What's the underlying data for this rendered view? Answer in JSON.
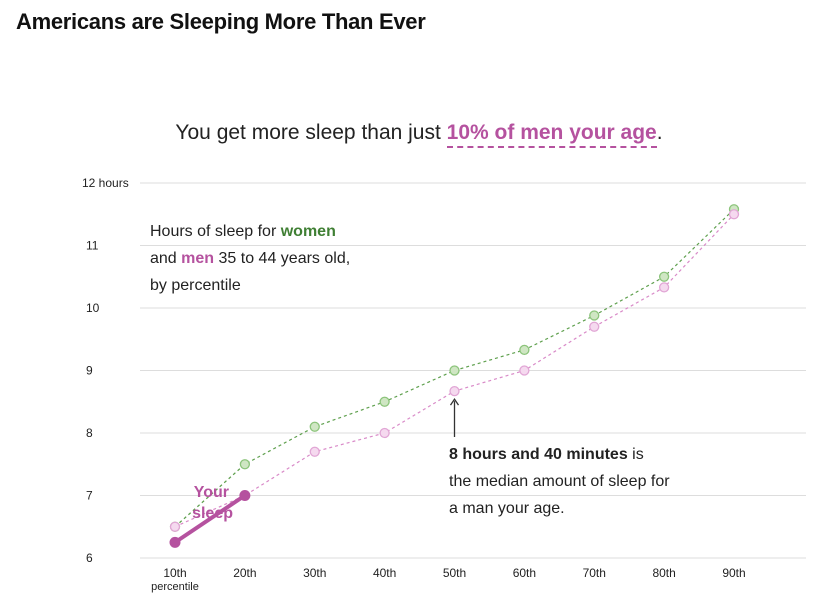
{
  "page": {
    "title": "Americans are Sleeping More Than Ever",
    "subtitle_prefix": "You get more sleep than just",
    "subtitle_highlight": "10% of men your age",
    "subtitle_suffix": "."
  },
  "legend": {
    "line1_prefix": "Hours of sleep for",
    "women_word": "women",
    "line2_prefix": "and",
    "men_word": "men",
    "line2_suffix": "35 to 44 years old,",
    "line3": "by percentile"
  },
  "annotation": {
    "bold": "8 hours and 40 minutes",
    "line1_suffix": "is",
    "line2": "the median amount of sleep for",
    "line3": "a man your age."
  },
  "chart_data": {
    "type": "line",
    "title": "Hours of sleep for women and men 35 to 44 years old, by percentile",
    "categories": [
      "10th",
      "20th",
      "30th",
      "40th",
      "50th",
      "60th",
      "70th",
      "80th",
      "90th"
    ],
    "x_sublabel": "percentile",
    "y_ticks": [
      6,
      7,
      8,
      9,
      10,
      11,
      12
    ],
    "y_tick_labels": [
      "6",
      "7",
      "8",
      "9",
      "10",
      "11",
      "12 hours"
    ],
    "ylim": [
      6,
      12
    ],
    "series": [
      {
        "name": "women",
        "color": "#5fa04e",
        "values": [
          6.5,
          7.5,
          8.1,
          8.5,
          9.0,
          9.33,
          9.88,
          10.5,
          11.58
        ]
      },
      {
        "name": "men",
        "color": "#d98ac8",
        "values": [
          6.5,
          7.0,
          7.7,
          8.0,
          8.67,
          9.0,
          9.7,
          10.33,
          11.5
        ]
      }
    ],
    "your_sleep": {
      "label_line1": "Your",
      "label_line2": "sleep",
      "color": "#b5529f",
      "start": {
        "category": "10th",
        "value": 6.25
      },
      "end": {
        "category": "20th",
        "value": 7.0
      }
    },
    "annotation_target": {
      "category": "50th",
      "value": 8.67
    }
  }
}
